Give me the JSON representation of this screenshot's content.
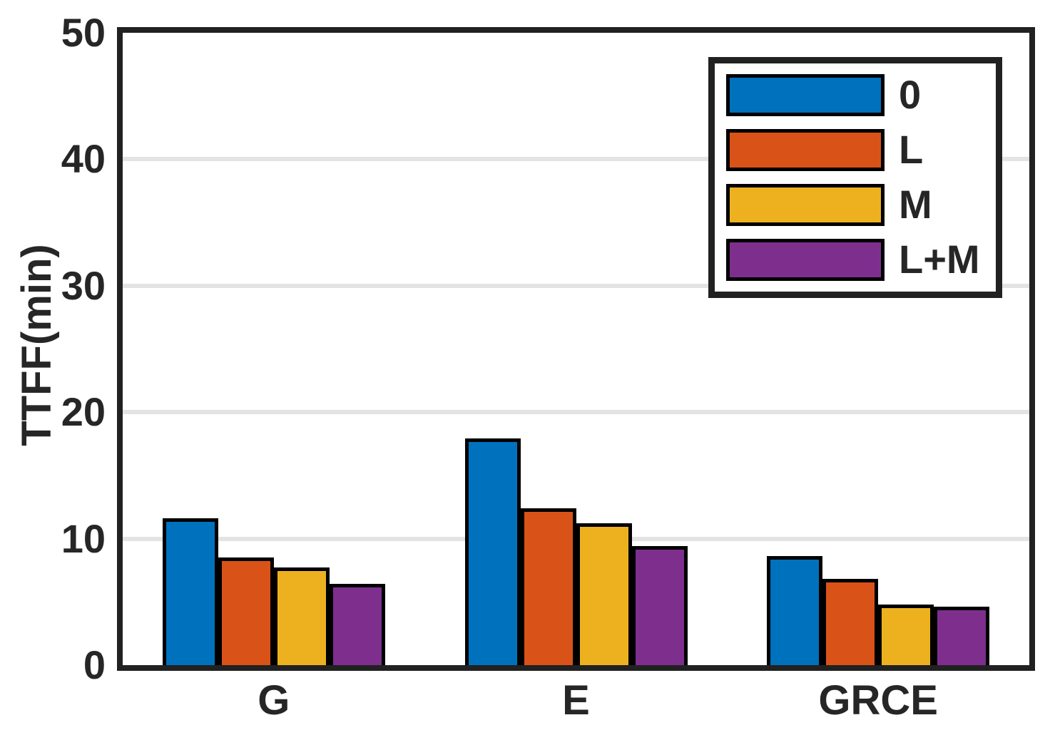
{
  "figure": {
    "background": "#ffffff",
    "axis_color": "#212121",
    "grid_color": "#e3e3e3",
    "bar_edge_color": "#000000",
    "text_color": "#262626"
  },
  "chart_data": {
    "type": "bar",
    "title": "",
    "xlabel": "",
    "ylabel": "TTFF(min)",
    "categories": [
      "G",
      "E",
      "GRCE"
    ],
    "series": [
      {
        "name": "0",
        "color": "#0072BD",
        "values": [
          11.6,
          17.9,
          8.6
        ]
      },
      {
        "name": "L",
        "color": "#D95319",
        "values": [
          8.5,
          12.4,
          6.8
        ]
      },
      {
        "name": "M",
        "color": "#EDB120",
        "values": [
          7.7,
          11.2,
          4.8
        ]
      },
      {
        "name": "L+M",
        "color": "#7E2F8E",
        "values": [
          6.4,
          9.4,
          4.6
        ]
      }
    ],
    "ylim": [
      0,
      50
    ],
    "yticks": [
      0,
      10,
      20,
      30,
      40,
      50
    ],
    "grid": "horizontal",
    "legend_position": "top-right"
  }
}
